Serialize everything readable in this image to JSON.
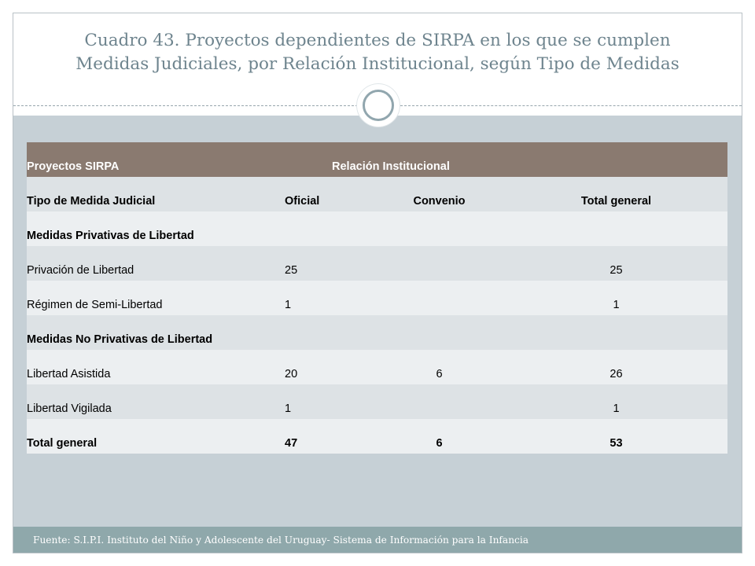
{
  "title": {
    "line1": "Cuadro 43. Proyectos dependientes de SIRPA en los que se cumplen",
    "line2": "Medidas Judiciales, por Relación Institucional, según Tipo de Medidas"
  },
  "table": {
    "header": {
      "col1": "Proyectos SIRPA",
      "col2": "Relación Institucional"
    },
    "subheader": {
      "col1": "Tipo de Medida Judicial",
      "col2": "Oficial",
      "col3": "Convenio",
      "col4": "Total general"
    },
    "rows": [
      {
        "label": "Medidas Privativas de Libertad",
        "oficial": "",
        "convenio": "",
        "total": ""
      },
      {
        "label": "Privación de Libertad",
        "oficial": "25",
        "convenio": "",
        "total": "25"
      },
      {
        "label": "Régimen de Semi-Libertad",
        "oficial": "1",
        "convenio": "",
        "total": "1"
      },
      {
        "label": "Medidas No Privativas de Libertad",
        "oficial": "",
        "convenio": "",
        "total": ""
      },
      {
        "label": "Libertad Asistida",
        "oficial": "20",
        "convenio": "6",
        "total": "26"
      },
      {
        "label": "Libertad Vigilada",
        "oficial": "1",
        "convenio": "",
        "total": "1"
      },
      {
        "label": "Total general",
        "oficial": "47",
        "convenio": "6",
        "total": "53"
      }
    ]
  },
  "footer": {
    "source": "Fuente: S.I.P.I. Instituto del Niño y Adolescente del Uruguay- Sistema de Información para la Infancia"
  },
  "colors": {
    "header_bg": "#8a7a70",
    "content_bg": "#c6d0d6",
    "footer_bg": "#8fa8ab",
    "title_color": "#6e848e"
  }
}
